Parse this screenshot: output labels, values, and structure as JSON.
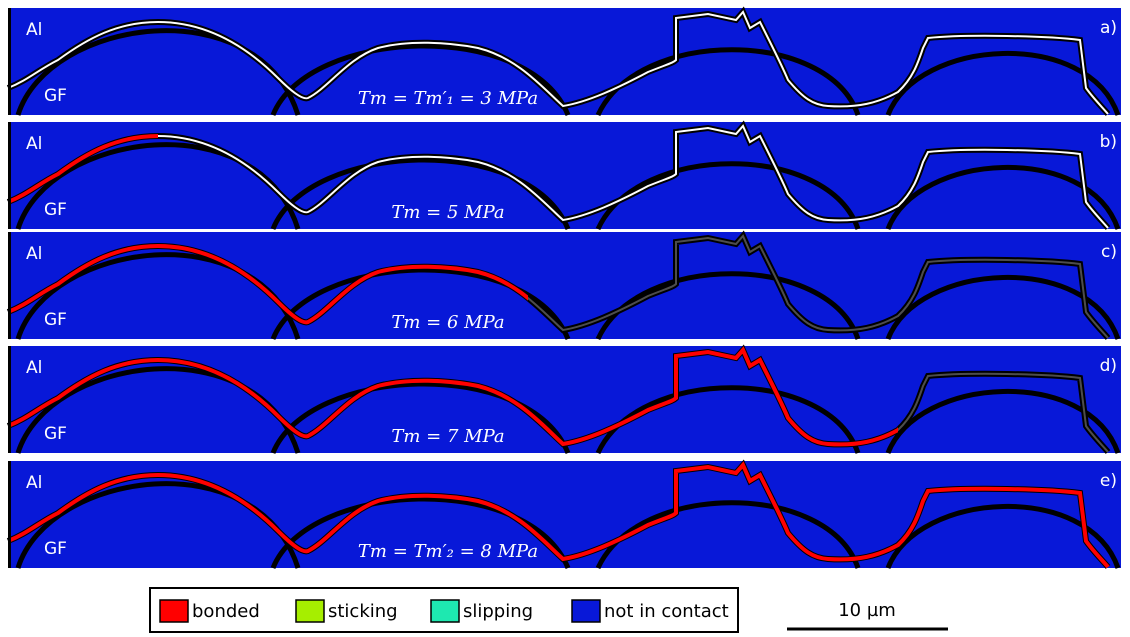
{
  "panels": [
    {
      "label": "a)",
      "top": "Al",
      "bottom": "GF",
      "condition": "Tm = Tm′₁ = 3 MPa"
    },
    {
      "label": "b)",
      "top": "Al",
      "bottom": "GF",
      "condition": "Tm = 5 MPa"
    },
    {
      "label": "c)",
      "top": "Al",
      "bottom": "GF",
      "condition": "Tm = 6 MPa"
    },
    {
      "label": "d)",
      "top": "Al",
      "bottom": "GF",
      "condition": "Tm = 7 MPa"
    },
    {
      "label": "e)",
      "top": "Al",
      "bottom": "GF",
      "condition": "Tm = Tm′₂ = 8 MPa"
    }
  ],
  "legend": [
    {
      "label": "bonded",
      "color": "#ff0000"
    },
    {
      "label": "sticking",
      "color": "#a6ee00"
    },
    {
      "label": "slipping",
      "color": "#1ee8b0"
    },
    {
      "label": "not in contact",
      "color": "#0818d8"
    }
  ],
  "scale_bar": "10 µm"
}
